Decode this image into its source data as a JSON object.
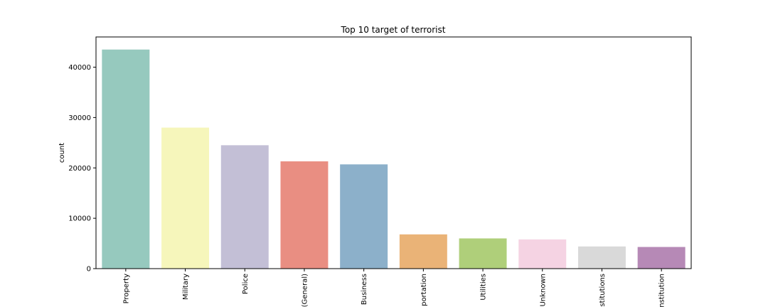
{
  "chart_data": {
    "type": "bar",
    "title": "Top 10 target of terrorist",
    "xlabel": "",
    "ylabel": "count",
    "categories": [
      "Property",
      "Military",
      "Police",
      "(General)",
      "Business",
      "portation",
      "Utilities",
      "Unknown",
      "stitutions",
      "nstitution"
    ],
    "values": [
      43500,
      28000,
      24500,
      21300,
      20700,
      6800,
      6000,
      5800,
      4400,
      4300
    ],
    "colors": [
      "#96c9be",
      "#f6f6bb",
      "#c3bfd6",
      "#e98e82",
      "#8cb0ca",
      "#eab377",
      "#afcf7a",
      "#f5d3e3",
      "#d9d9d9",
      "#b689b6"
    ],
    "ylim": [
      0,
      46000
    ],
    "yticks": [
      0,
      10000,
      20000,
      30000,
      40000
    ],
    "grid": false,
    "legend": "none"
  }
}
